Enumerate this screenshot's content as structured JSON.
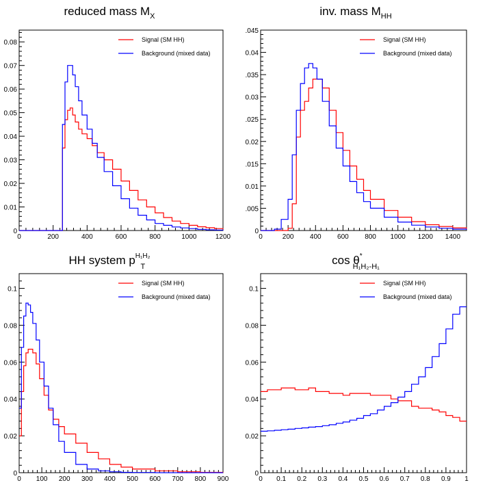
{
  "chart_data": [
    {
      "type": "line",
      "title": "reduced mass M",
      "title_sub": "X",
      "xlim": [
        0,
        1200
      ],
      "ylim": [
        0,
        0.085
      ],
      "xticks": [
        0,
        200,
        400,
        600,
        800,
        1000,
        1200
      ],
      "yticks": [
        0,
        0.01,
        0.02,
        0.03,
        0.04,
        0.05,
        0.06,
        0.07,
        0.08
      ],
      "xtick_labels": [
        "0",
        "200",
        "400",
        "600",
        "800",
        "1000",
        "1200"
      ],
      "ytick_labels": [
        "0",
        "0.01",
        "0.02",
        "0.03",
        "0.04",
        "0.05",
        "0.06",
        "0.07",
        "0.08"
      ],
      "legend_placement": "top-right",
      "series": [
        {
          "name": "Signal (SM HH)",
          "color": "#ff0000",
          "x": [
            0,
            200,
            240,
            255,
            270,
            285,
            300,
            315,
            330,
            350,
            370,
            400,
            430,
            460,
            500,
            550,
            600,
            650,
            700,
            750,
            800,
            850,
            900,
            950,
            1000,
            1050,
            1100,
            1150,
            1200
          ],
          "values": [
            0,
            0,
            0,
            0.035,
            0.047,
            0.051,
            0.052,
            0.049,
            0.046,
            0.043,
            0.041,
            0.039,
            0.036,
            0.033,
            0.03,
            0.026,
            0.021,
            0.017,
            0.013,
            0.01,
            0.0075,
            0.0055,
            0.004,
            0.003,
            0.0022,
            0.0016,
            0.0012,
            0.0008,
            0.0005
          ]
        },
        {
          "name": "Background (mixed data)",
          "color": "#0000ff",
          "x": [
            0,
            200,
            240,
            255,
            270,
            285,
            300,
            315,
            330,
            350,
            370,
            400,
            430,
            460,
            500,
            550,
            600,
            650,
            700,
            750,
            800,
            850,
            900,
            950,
            1000,
            1050,
            1100,
            1150,
            1200
          ],
          "values": [
            0,
            0,
            0,
            0.045,
            0.063,
            0.07,
            0.07,
            0.066,
            0.061,
            0.055,
            0.049,
            0.043,
            0.037,
            0.031,
            0.025,
            0.019,
            0.0135,
            0.0095,
            0.0065,
            0.0045,
            0.003,
            0.0022,
            0.0015,
            0.0011,
            0.0008,
            0.0005,
            0.0003,
            0.0002,
            0.0001
          ]
        }
      ]
    },
    {
      "type": "line",
      "title": "inv. mass M",
      "title_sub": "HH",
      "xlim": [
        0,
        1500
      ],
      "ylim": [
        0,
        0.045
      ],
      "xticks": [
        0,
        200,
        400,
        600,
        800,
        1000,
        1200,
        1400
      ],
      "yticks": [
        0,
        0.005,
        0.01,
        0.015,
        0.02,
        0.025,
        0.03,
        0.035,
        0.04,
        0.045
      ],
      "xtick_labels": [
        "0",
        "200",
        "400",
        "600",
        "800",
        "1000",
        "1200",
        "1400"
      ],
      "ytick_labels": [
        "0",
        ".005",
        "0.01",
        ".015",
        "0.02",
        ".025",
        "0.03",
        ".035",
        "0.04",
        ".045"
      ],
      "legend_placement": "top-right",
      "series": [
        {
          "name": "Signal (SM HH)",
          "color": "#ff0000",
          "x": [
            0,
            100,
            150,
            200,
            230,
            260,
            290,
            320,
            350,
            380,
            410,
            450,
            500,
            550,
            600,
            650,
            700,
            750,
            800,
            900,
            1000,
            1100,
            1200,
            1300,
            1400,
            1500
          ],
          "values": [
            0,
            0,
            0,
            0.0005,
            0.006,
            0.021,
            0.027,
            0.029,
            0.032,
            0.034,
            0.034,
            0.032,
            0.027,
            0.022,
            0.018,
            0.0145,
            0.0115,
            0.009,
            0.007,
            0.0045,
            0.003,
            0.002,
            0.0013,
            0.0009,
            0.0006,
            0.0004
          ]
        },
        {
          "name": "Background (mixed data)",
          "color": "#0000ff",
          "x": [
            0,
            100,
            150,
            200,
            230,
            260,
            290,
            320,
            350,
            380,
            410,
            450,
            500,
            550,
            600,
            650,
            700,
            750,
            800,
            900,
            1000,
            1100,
            1200,
            1300,
            1400,
            1500
          ],
          "values": [
            0,
            0.0003,
            0.0025,
            0.007,
            0.017,
            0.027,
            0.033,
            0.0365,
            0.0375,
            0.0365,
            0.034,
            0.029,
            0.0235,
            0.0185,
            0.0145,
            0.011,
            0.0085,
            0.0065,
            0.005,
            0.003,
            0.0019,
            0.0012,
            0.0008,
            0.0005,
            0.0003,
            0.0002
          ]
        }
      ]
    },
    {
      "type": "line",
      "title": "HH system p",
      "title_sub": "T",
      "title_sup": "H₁H₂",
      "xlim": [
        0,
        900
      ],
      "ylim": [
        0,
        0.108
      ],
      "xticks": [
        0,
        100,
        200,
        300,
        400,
        500,
        600,
        700,
        800,
        900
      ],
      "yticks": [
        0,
        0.02,
        0.04,
        0.06,
        0.08,
        0.1
      ],
      "xtick_labels": [
        "0",
        "100",
        "200",
        "300",
        "400",
        "500",
        "600",
        "700",
        "800",
        "900"
      ],
      "ytick_labels": [
        "0",
        "0.02",
        "0.04",
        "0.06",
        "0.08",
        "0.1"
      ],
      "legend_placement": "top-right",
      "series": [
        {
          "name": "Signal (SM HH)",
          "color": "#ff0000",
          "x": [
            0,
            10,
            20,
            30,
            40,
            50,
            60,
            75,
            90,
            110,
            130,
            150,
            175,
            200,
            250,
            300,
            350,
            400,
            450,
            500,
            600,
            700,
            800,
            900
          ],
          "values": [
            0.02,
            0.044,
            0.058,
            0.065,
            0.067,
            0.067,
            0.065,
            0.059,
            0.051,
            0.042,
            0.034,
            0.029,
            0.025,
            0.021,
            0.016,
            0.011,
            0.0075,
            0.0045,
            0.003,
            0.002,
            0.001,
            0.0005,
            0.0002,
            0.0001
          ]
        },
        {
          "name": "Background (mixed data)",
          "color": "#0000ff",
          "x": [
            0,
            10,
            20,
            30,
            40,
            50,
            60,
            75,
            90,
            110,
            130,
            150,
            175,
            200,
            250,
            300,
            350,
            400,
            450,
            500,
            600,
            700,
            800,
            900
          ],
          "values": [
            0.035,
            0.068,
            0.085,
            0.092,
            0.091,
            0.087,
            0.081,
            0.072,
            0.06,
            0.047,
            0.035,
            0.026,
            0.017,
            0.011,
            0.0045,
            0.002,
            0.001,
            0.0005,
            0.0002,
            0.0001,
            0,
            0,
            0,
            0
          ]
        }
      ]
    },
    {
      "type": "line",
      "title": "cos θ",
      "title_sub": "H₁H₂-H₁",
      "title_sup": "*",
      "xlim": [
        0,
        1
      ],
      "ylim": [
        0,
        0.108
      ],
      "xticks": [
        0,
        0.1,
        0.2,
        0.3,
        0.4,
        0.5,
        0.6,
        0.7,
        0.8,
        0.9,
        1
      ],
      "yticks": [
        0,
        0.02,
        0.04,
        0.06,
        0.08,
        0.1
      ],
      "xtick_labels": [
        "0",
        "0.1",
        "0.2",
        "0.3",
        "0.4",
        "0.5",
        "0.6",
        "0.7",
        "0.8",
        "0.9",
        "1"
      ],
      "ytick_labels": [
        "0",
        "0.02",
        "0.04",
        "0.06",
        "0.08",
        "0.1"
      ],
      "legend_placement": "top-right",
      "series": [
        {
          "name": "Signal (SM HH)",
          "color": "#ff0000",
          "x": [
            0,
            0.033,
            0.067,
            0.1,
            0.133,
            0.167,
            0.2,
            0.233,
            0.267,
            0.3,
            0.333,
            0.367,
            0.4,
            0.433,
            0.467,
            0.5,
            0.533,
            0.567,
            0.6,
            0.633,
            0.667,
            0.7,
            0.733,
            0.767,
            0.8,
            0.833,
            0.867,
            0.9,
            0.933,
            0.967
          ],
          "values": [
            0.044,
            0.045,
            0.045,
            0.046,
            0.046,
            0.045,
            0.045,
            0.046,
            0.044,
            0.044,
            0.043,
            0.043,
            0.042,
            0.043,
            0.043,
            0.043,
            0.042,
            0.042,
            0.042,
            0.04,
            0.039,
            0.039,
            0.036,
            0.035,
            0.035,
            0.034,
            0.033,
            0.031,
            0.03,
            0.028
          ]
        },
        {
          "name": "Background (mixed data)",
          "color": "#0000ff",
          "x": [
            0,
            0.033,
            0.067,
            0.1,
            0.133,
            0.167,
            0.2,
            0.233,
            0.267,
            0.3,
            0.333,
            0.367,
            0.4,
            0.433,
            0.467,
            0.5,
            0.533,
            0.567,
            0.6,
            0.633,
            0.667,
            0.7,
            0.733,
            0.767,
            0.8,
            0.833,
            0.867,
            0.9,
            0.933,
            0.967
          ],
          "values": [
            0.0225,
            0.0227,
            0.023,
            0.0233,
            0.0236,
            0.024,
            0.0243,
            0.0247,
            0.025,
            0.0255,
            0.026,
            0.0268,
            0.0275,
            0.0285,
            0.0295,
            0.031,
            0.032,
            0.034,
            0.036,
            0.038,
            0.041,
            0.044,
            0.048,
            0.052,
            0.057,
            0.063,
            0.07,
            0.078,
            0.086,
            0.09
          ]
        }
      ]
    }
  ]
}
